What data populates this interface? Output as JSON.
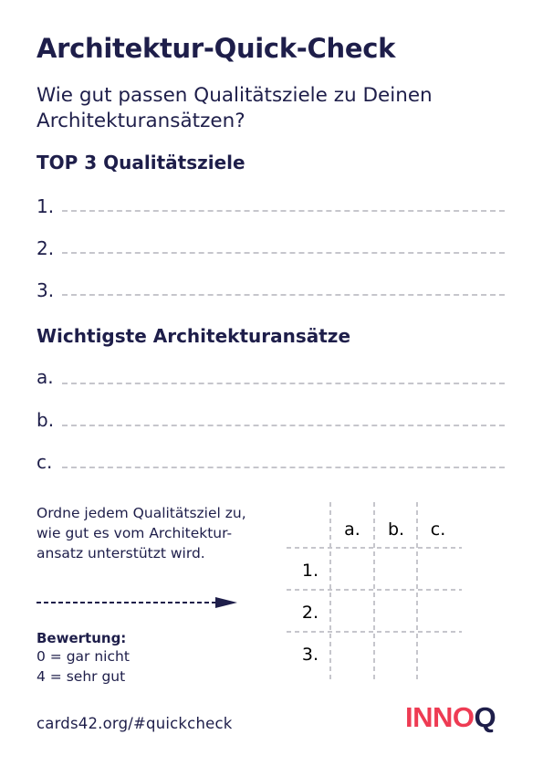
{
  "title": "Architektur-Quick-Check",
  "subtitle": "Wie gut passen Qualitätsziele zu Deinen Architekturansätzen?",
  "section_goals": {
    "heading": "TOP 3 Qualitätsziele",
    "items": [
      "1.",
      "2.",
      "3."
    ]
  },
  "section_approaches": {
    "heading": "Wichtigste Architekturansätze",
    "items": [
      "a.",
      "b.",
      "c."
    ]
  },
  "instruction": {
    "line1": "Ordne jedem Qualitätsziel zu,",
    "line2": "wie gut es vom Architektur-",
    "line3": "ansatz unterstützt wird."
  },
  "matrix": {
    "columns": [
      "a.",
      "b.",
      "c."
    ],
    "rows": [
      "1.",
      "2.",
      "3."
    ]
  },
  "rating": {
    "heading": "Bewertung:",
    "lines": [
      "0 = gar nicht",
      "4 = sehr gut"
    ]
  },
  "footer": {
    "url": "cards42.org/#quickcheck",
    "logo_main": "INNO",
    "logo_end": "Q"
  },
  "colors": {
    "text": "#1e1e4a",
    "dashes": "#c6c6cc",
    "brand": "#ee3b53"
  }
}
